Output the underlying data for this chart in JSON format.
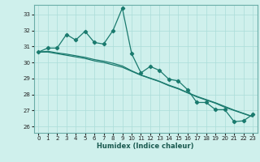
{
  "xlabel": "Humidex (Indice chaleur)",
  "background_color": "#cff0ec",
  "grid_color": "#aaddd8",
  "line_color": "#1a7a6e",
  "xlim": [
    -0.5,
    23.5
  ],
  "ylim": [
    25.6,
    33.6
  ],
  "xticks": [
    0,
    1,
    2,
    3,
    4,
    5,
    6,
    7,
    8,
    9,
    10,
    11,
    12,
    13,
    14,
    15,
    16,
    17,
    18,
    19,
    20,
    21,
    22,
    23
  ],
  "yticks": [
    26,
    27,
    28,
    29,
    30,
    31,
    32,
    33
  ],
  "series1": [
    30.65,
    30.9,
    30.9,
    31.75,
    31.4,
    31.95,
    31.25,
    31.15,
    32.0,
    33.4,
    30.55,
    29.35,
    29.75,
    29.5,
    28.95,
    28.85,
    28.3,
    27.5,
    27.5,
    27.05,
    27.05,
    26.3,
    26.35,
    26.75
  ],
  "trend1": [
    30.65,
    30.65,
    30.55,
    30.45,
    30.35,
    30.25,
    30.1,
    30.0,
    29.85,
    29.7,
    29.45,
    29.2,
    29.0,
    28.8,
    28.55,
    28.35,
    28.1,
    27.85,
    27.65,
    27.45,
    27.2,
    27.0,
    26.8,
    26.6
  ],
  "trend2": [
    30.65,
    30.7,
    30.6,
    30.52,
    30.42,
    30.32,
    30.18,
    30.08,
    29.95,
    29.78,
    29.48,
    29.22,
    29.02,
    28.82,
    28.58,
    28.38,
    28.12,
    27.88,
    27.68,
    27.48,
    27.25,
    27.02,
    26.82,
    26.62
  ]
}
